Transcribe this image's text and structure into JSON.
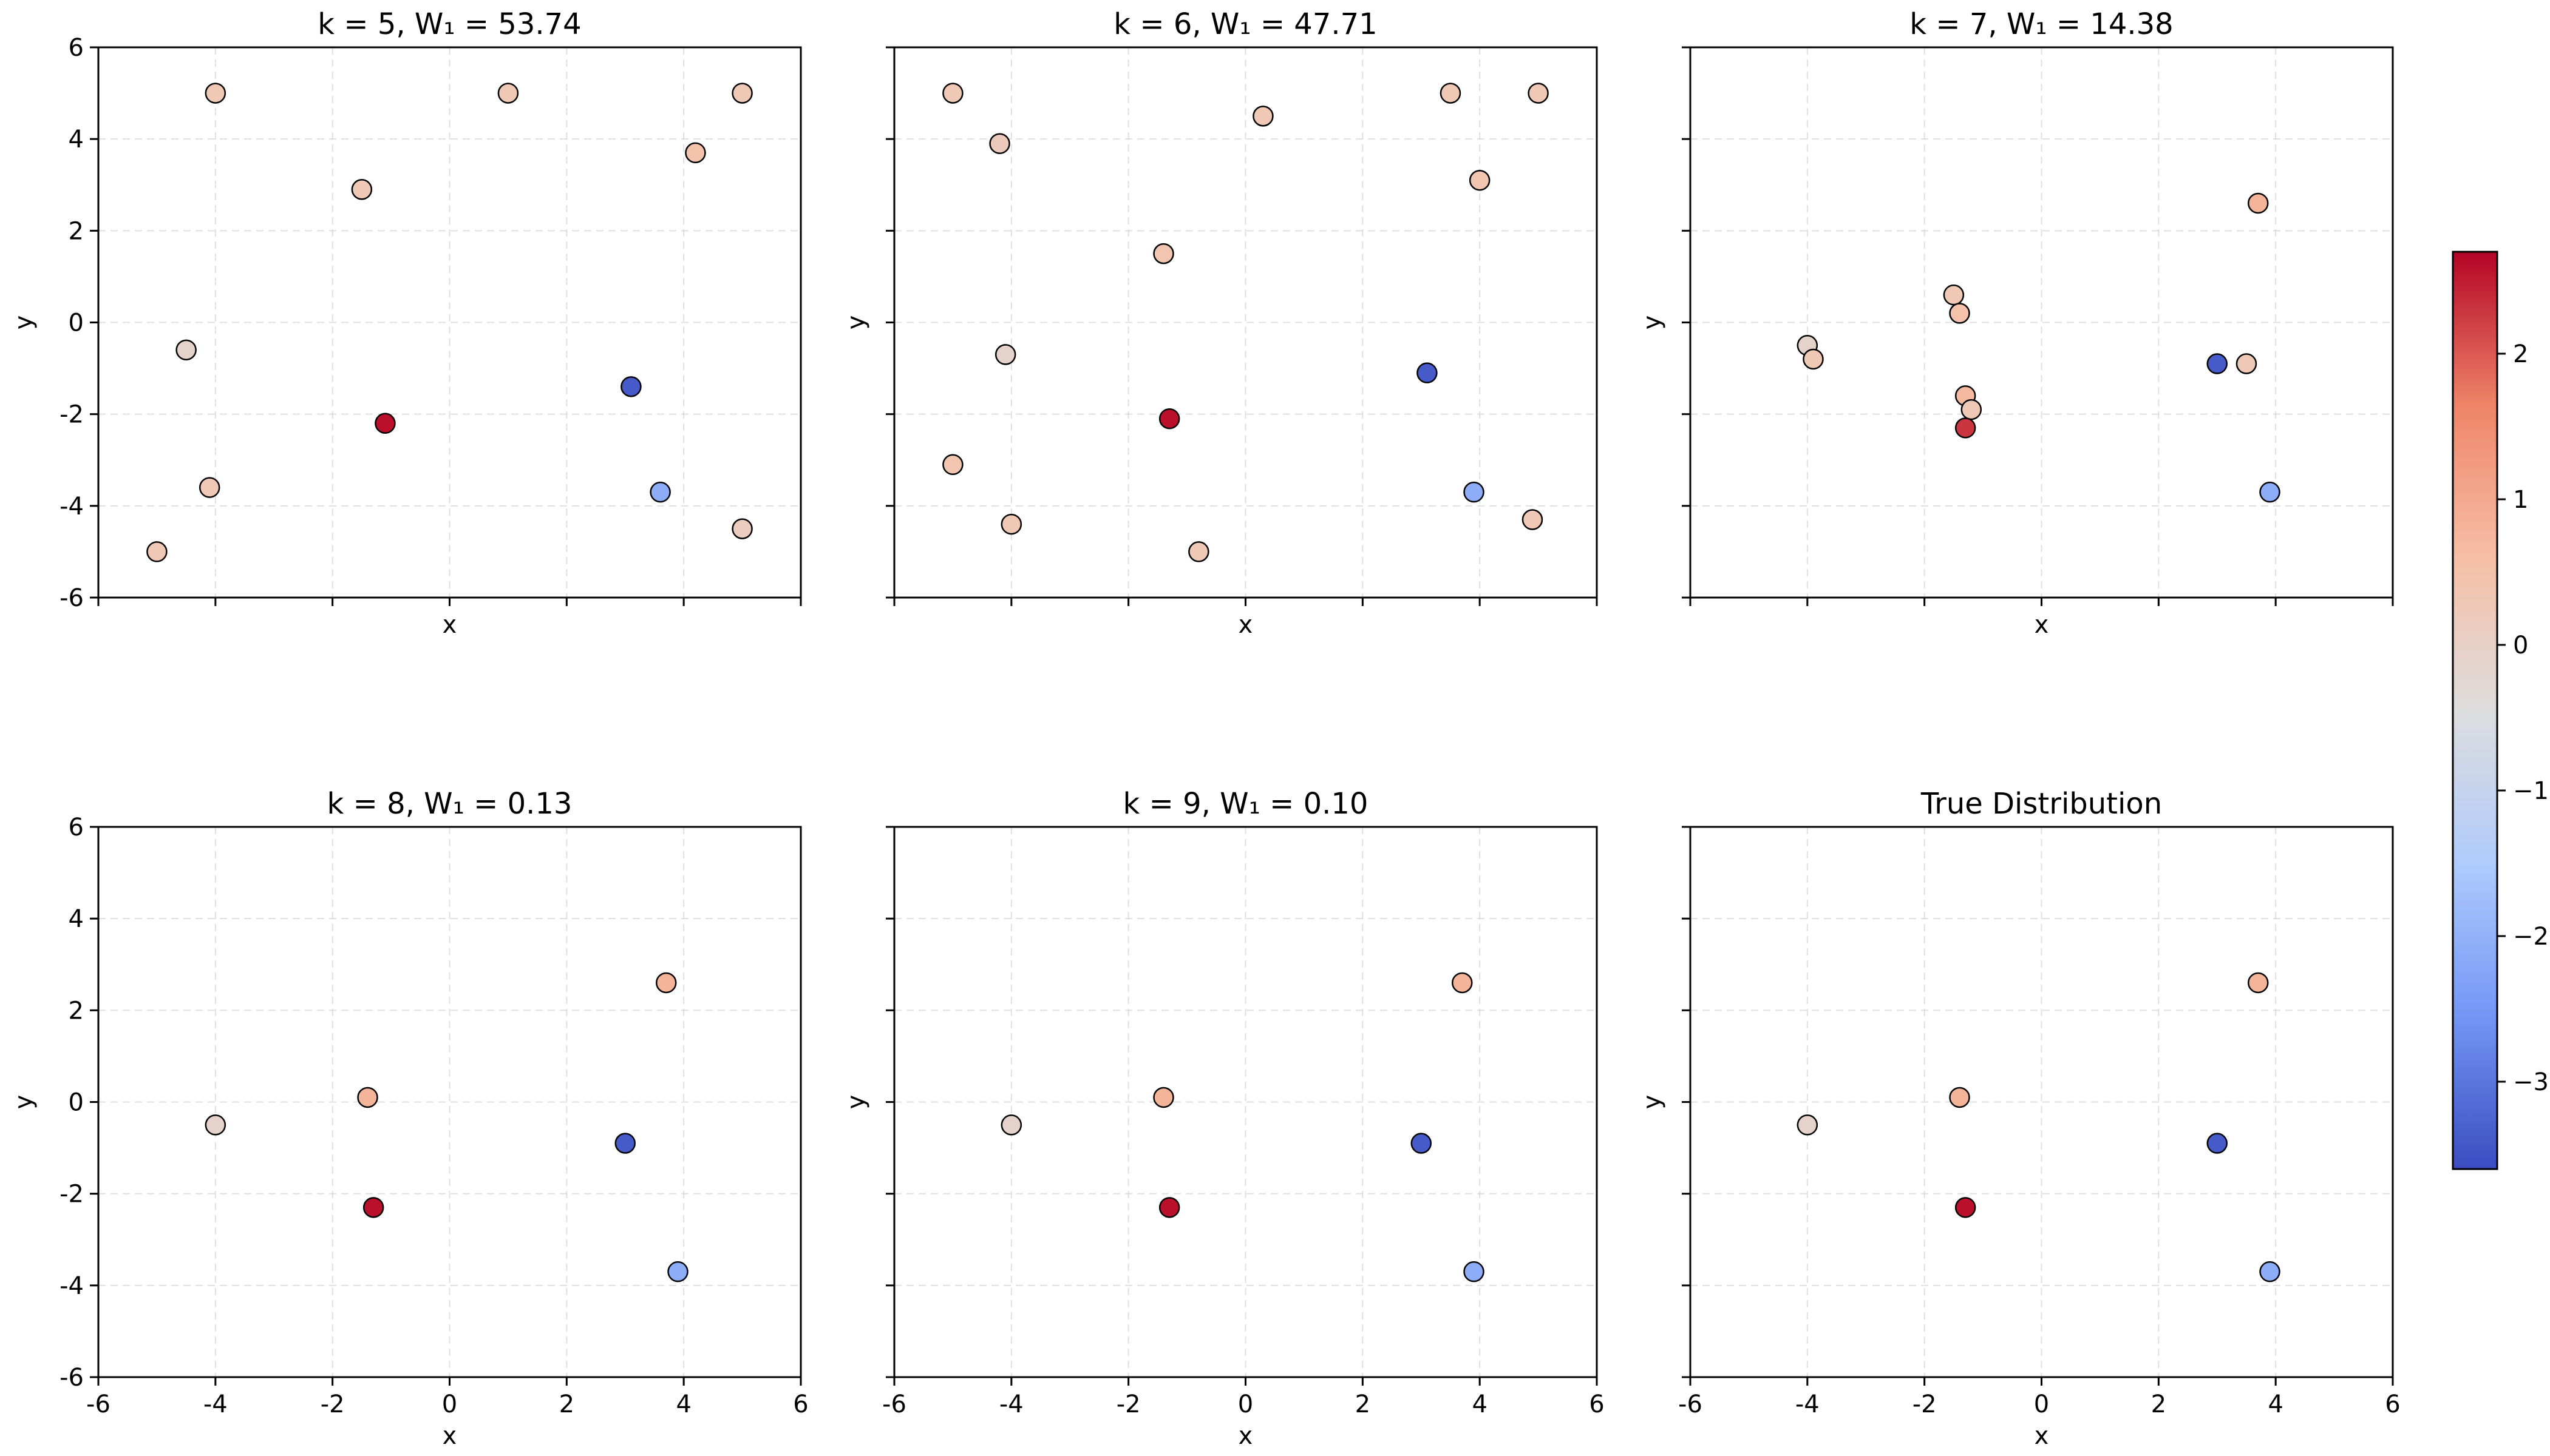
{
  "chart_data": [
    {
      "type": "scatter",
      "title": "k = 5, W₁ = 53.74",
      "xlabel": "x",
      "ylabel": "y",
      "xlim": [
        -6,
        6
      ],
      "ylim": [
        -6,
        6
      ],
      "xticks": [
        -6,
        -4,
        -2,
        0,
        2,
        4,
        6
      ],
      "yticks": [
        -6,
        -4,
        -2,
        0,
        2,
        4,
        6
      ],
      "show_xticklabels": false,
      "show_yticklabels": true,
      "grid": true,
      "points": [
        {
          "x": -4.0,
          "y": 5.0,
          "v": 0.3
        },
        {
          "x": 1.0,
          "y": 5.0,
          "v": 0.3
        },
        {
          "x": 5.0,
          "y": 5.0,
          "v": 0.3
        },
        {
          "x": 4.2,
          "y": 3.7,
          "v": 0.5
        },
        {
          "x": -1.5,
          "y": 2.9,
          "v": 0.3
        },
        {
          "x": -4.5,
          "y": -0.6,
          "v": -0.1
        },
        {
          "x": -1.1,
          "y": -2.2,
          "v": 2.6
        },
        {
          "x": 3.1,
          "y": -1.4,
          "v": -3.4
        },
        {
          "x": 3.6,
          "y": -3.7,
          "v": -2.1
        },
        {
          "x": -4.1,
          "y": -3.6,
          "v": 0.3
        },
        {
          "x": -5.0,
          "y": -5.0,
          "v": 0.3
        },
        {
          "x": 5.0,
          "y": -4.5,
          "v": 0.15
        }
      ]
    },
    {
      "type": "scatter",
      "title": "k = 6, W₁ = 47.71",
      "xlabel": "x",
      "ylabel": "y",
      "xlim": [
        -6,
        6
      ],
      "ylim": [
        -6,
        6
      ],
      "xticks": [
        -6,
        -4,
        -2,
        0,
        2,
        4,
        6
      ],
      "yticks": [
        -6,
        -4,
        -2,
        0,
        2,
        4,
        6
      ],
      "show_xticklabels": false,
      "show_yticklabels": false,
      "grid": true,
      "points": [
        {
          "x": -5.0,
          "y": 5.0,
          "v": 0.3
        },
        {
          "x": 3.5,
          "y": 5.0,
          "v": 0.3
        },
        {
          "x": 5.0,
          "y": 5.0,
          "v": 0.3
        },
        {
          "x": 0.3,
          "y": 4.5,
          "v": 0.3
        },
        {
          "x": -4.2,
          "y": 3.9,
          "v": 0.2
        },
        {
          "x": 4.0,
          "y": 3.1,
          "v": 0.4
        },
        {
          "x": -1.4,
          "y": 1.5,
          "v": 0.4
        },
        {
          "x": -4.1,
          "y": -0.7,
          "v": -0.1
        },
        {
          "x": -1.3,
          "y": -2.1,
          "v": 2.6
        },
        {
          "x": 3.1,
          "y": -1.1,
          "v": -3.4
        },
        {
          "x": 3.9,
          "y": -3.7,
          "v": -2.1
        },
        {
          "x": -5.0,
          "y": -3.1,
          "v": 0.4
        },
        {
          "x": -4.0,
          "y": -4.4,
          "v": 0.3
        },
        {
          "x": 4.9,
          "y": -4.3,
          "v": 0.3
        },
        {
          "x": -0.8,
          "y": -5.0,
          "v": 0.3
        }
      ]
    },
    {
      "type": "scatter",
      "title": "k = 7, W₁ = 14.38",
      "xlabel": "x",
      "ylabel": "y",
      "xlim": [
        -6,
        6
      ],
      "ylim": [
        -6,
        6
      ],
      "xticks": [
        -6,
        -4,
        -2,
        0,
        2,
        4,
        6
      ],
      "yticks": [
        -6,
        -4,
        -2,
        0,
        2,
        4,
        6
      ],
      "show_xticklabels": false,
      "show_yticklabels": false,
      "grid": true,
      "points": [
        {
          "x": 3.7,
          "y": 2.6,
          "v": 0.8
        },
        {
          "x": -1.5,
          "y": 0.6,
          "v": 0.3
        },
        {
          "x": -1.4,
          "y": 0.2,
          "v": 0.5
        },
        {
          "x": -4.0,
          "y": -0.5,
          "v": -0.1
        },
        {
          "x": -3.9,
          "y": -0.8,
          "v": 0.3
        },
        {
          "x": 3.5,
          "y": -0.9,
          "v": 0.3
        },
        {
          "x": 3.0,
          "y": -0.9,
          "v": -3.4
        },
        {
          "x": -1.3,
          "y": -1.6,
          "v": 0.7
        },
        {
          "x": -1.2,
          "y": -1.9,
          "v": 0.3
        },
        {
          "x": -1.3,
          "y": -2.3,
          "v": 2.3
        },
        {
          "x": 3.9,
          "y": -3.7,
          "v": -2.1
        }
      ]
    },
    {
      "type": "scatter",
      "title": "k = 8, W₁ = 0.13",
      "xlabel": "x",
      "ylabel": "y",
      "xlim": [
        -6,
        6
      ],
      "ylim": [
        -6,
        6
      ],
      "xticks": [
        -6,
        -4,
        -2,
        0,
        2,
        4,
        6
      ],
      "yticks": [
        -6,
        -4,
        -2,
        0,
        2,
        4,
        6
      ],
      "show_xticklabels": true,
      "show_yticklabels": true,
      "grid": true,
      "points": [
        {
          "x": 3.7,
          "y": 2.6,
          "v": 0.8
        },
        {
          "x": -1.4,
          "y": 0.1,
          "v": 0.8
        },
        {
          "x": -4.0,
          "y": -0.5,
          "v": -0.1
        },
        {
          "x": 3.0,
          "y": -0.9,
          "v": -3.4
        },
        {
          "x": -1.3,
          "y": -2.3,
          "v": 2.6
        },
        {
          "x": 3.9,
          "y": -3.7,
          "v": -2.1
        }
      ]
    },
    {
      "type": "scatter",
      "title": "k = 9, W₁ = 0.10",
      "xlabel": "x",
      "ylabel": "y",
      "xlim": [
        -6,
        6
      ],
      "ylim": [
        -6,
        6
      ],
      "xticks": [
        -6,
        -4,
        -2,
        0,
        2,
        4,
        6
      ],
      "yticks": [
        -6,
        -4,
        -2,
        0,
        2,
        4,
        6
      ],
      "show_xticklabels": true,
      "show_yticklabels": false,
      "grid": true,
      "points": [
        {
          "x": 3.7,
          "y": 2.6,
          "v": 0.8
        },
        {
          "x": -1.4,
          "y": 0.1,
          "v": 0.8
        },
        {
          "x": -4.0,
          "y": -0.5,
          "v": -0.1
        },
        {
          "x": 3.0,
          "y": -0.9,
          "v": -3.4
        },
        {
          "x": -1.3,
          "y": -2.3,
          "v": 2.6
        },
        {
          "x": 3.9,
          "y": -3.7,
          "v": -2.1
        }
      ]
    },
    {
      "type": "scatter",
      "title": "True Distribution",
      "xlabel": "x",
      "ylabel": "y",
      "xlim": [
        -6,
        6
      ],
      "ylim": [
        -6,
        6
      ],
      "xticks": [
        -6,
        -4,
        -2,
        0,
        2,
        4,
        6
      ],
      "yticks": [
        -6,
        -4,
        -2,
        0,
        2,
        4,
        6
      ],
      "show_xticklabels": true,
      "show_yticklabels": false,
      "grid": true,
      "points": [
        {
          "x": 3.7,
          "y": 2.6,
          "v": 0.8
        },
        {
          "x": -1.4,
          "y": 0.1,
          "v": 0.8
        },
        {
          "x": -4.0,
          "y": -0.5,
          "v": -0.1
        },
        {
          "x": 3.0,
          "y": -0.9,
          "v": -3.4
        },
        {
          "x": -1.3,
          "y": -2.3,
          "v": 2.6
        },
        {
          "x": 3.9,
          "y": -3.7,
          "v": -2.1
        }
      ]
    }
  ],
  "colorbar": {
    "colormap": "coolwarm",
    "vmin": -3.6,
    "vmax": 2.7,
    "ticks": [
      -3,
      -2,
      -1,
      0,
      1,
      2
    ],
    "tick_labels": [
      "−3",
      "−2",
      "−1",
      "0",
      "1",
      "2"
    ],
    "colors": [
      "#3b4cc0",
      "#7396f5",
      "#b0cbfc",
      "#dddddd",
      "#f6bfa6",
      "#ee8468",
      "#b40426"
    ]
  }
}
